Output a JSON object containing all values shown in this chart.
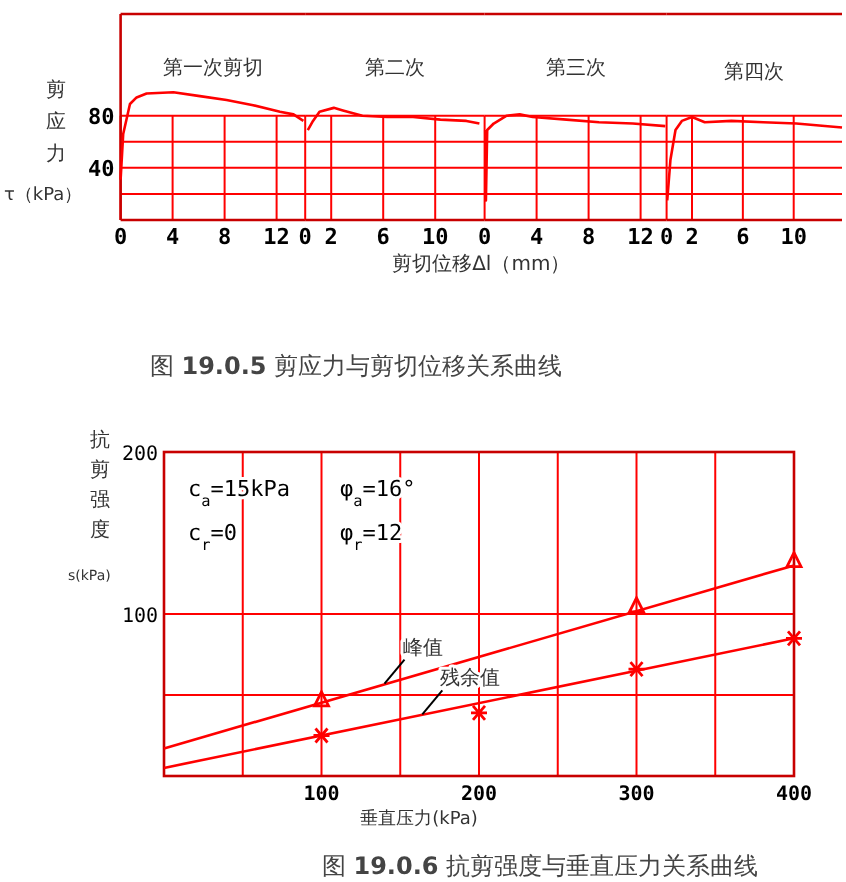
{
  "chart_data": [
    {
      "type": "line",
      "title": "第一次剪切",
      "xlabel": "剪切位移Δl（mm）",
      "ylabel": "剪应力 τ（kPa）",
      "color": "#ff0000",
      "grid": true,
      "x": [
        0,
        0.2,
        0.72,
        1.23,
        2.0,
        4.06,
        6.1,
        8.15,
        10.2,
        12.26,
        13.3,
        14.06
      ],
      "values": [
        31,
        66,
        89,
        94,
        97,
        98,
        95,
        92,
        88,
        83,
        81,
        76
      ],
      "xlim": [
        0,
        14.2
      ],
      "ylim": [
        0,
        158
      ],
      "xticks": [
        0,
        4,
        8,
        12
      ],
      "yticks": [
        {
          "value": 20,
          "label": null
        },
        40,
        {
          "value": 60,
          "label": null
        },
        80
      ],
      "annotations": [
        "图 **19.0.5**  剪应力与剪切位移关系曲线"
      ]
    },
    {
      "type": "line",
      "title": "第二次",
      "color": "#ff0000",
      "grid": true,
      "tick_labels": "x",
      "x": [
        0.2,
        0.6,
        1.1,
        2.2,
        2.9,
        4.4,
        6.3,
        8.3,
        10.4,
        12.4,
        13.4
      ],
      "values": [
        69,
        76,
        83,
        86,
        84,
        80,
        79,
        79,
        77,
        76,
        74
      ],
      "xlim": [
        0,
        13.8
      ],
      "ylim": [
        0,
        158
      ],
      "xticks": [
        0,
        2,
        6,
        10
      ],
      "yticks": [
        {
          "value": 20,
          "label": null
        },
        {
          "value": 40,
          "label": null
        },
        {
          "value": 60,
          "label": null
        },
        {
          "value": 80,
          "label": null
        }
      ]
    },
    {
      "type": "line",
      "title": "第三次",
      "color": "#ff0000",
      "grid": true,
      "tick_labels": "x",
      "x": [
        0.05,
        0.1,
        0.2,
        0.7,
        1.7,
        2.7,
        3.7,
        6.3,
        8.8,
        11.4,
        13.9
      ],
      "values": [
        69,
        15,
        69,
        74,
        80,
        81,
        79,
        77,
        75,
        74,
        72
      ],
      "xlim": [
        0,
        14
      ],
      "ylim": [
        0,
        158
      ],
      "xticks": [
        0,
        4,
        8,
        12
      ],
      "yticks": [
        {
          "value": 20,
          "label": null
        },
        {
          "value": 40,
          "label": null
        },
        {
          "value": 60,
          "label": null
        },
        {
          "value": 80,
          "label": null
        }
      ]
    },
    {
      "type": "line",
      "title": "第四次",
      "color": "#ff0000",
      "grid": true,
      "tick_labels": "x",
      "x": [
        0.05,
        0.3,
        0.7,
        1.2,
        2,
        3,
        5.1,
        7.6,
        10.2,
        13.8
      ],
      "values": [
        15,
        46,
        69,
        76,
        79,
        75,
        76,
        75,
        74,
        71
      ],
      "xlim": [
        0,
        13.8
      ],
      "ylim": [
        0,
        158
      ],
      "xticks": [
        0,
        2,
        6,
        10
      ],
      "yticks": [
        {
          "value": 20,
          "label": null
        },
        {
          "value": 40,
          "label": null
        },
        {
          "value": 60,
          "label": null
        },
        {
          "value": 80,
          "label": null
        }
      ]
    },
    {
      "type": "line",
      "title": "图 **19.0.6**  抗剪强度与垂直压力关系曲线",
      "xlabel": "垂直压力(kPa)",
      "ylabel": "抗剪强度 s(kPa)",
      "grid": true,
      "series": [
        {
          "color": "#ff0000",
          "x": [
            0,
            400
          ],
          "values": [
            17,
            130
          ]
        },
        {
          "color": "#ff0000",
          "x": [
            0,
            400
          ],
          "values": [
            5,
            85
          ]
        },
        {
          "type": "scatter",
          "marker": "triangle",
          "color": "#ff0000",
          "x": [
            100,
            300,
            400
          ],
          "values": [
            47,
            105,
            133
          ]
        },
        {
          "type": "scatter",
          "marker": "cross",
          "color": "#ff0000",
          "x": [
            100,
            200,
            300,
            400
          ],
          "values": [
            25,
            39,
            66,
            85
          ]
        }
      ],
      "xlim": [
        0,
        400
      ],
      "ylim": [
        0,
        200
      ],
      "xticks": [
        {
          "value": 50,
          "label": null
        },
        100,
        {
          "value": 150,
          "label": null
        },
        200,
        {
          "value": 250,
          "label": null
        },
        300,
        {
          "value": 350,
          "label": null
        },
        400
      ],
      "yticks": [
        {
          "value": 50,
          "label": null
        },
        100,
        200
      ],
      "annotations": [
        "c$_{a}$=15kPa",
        "φ$_{a}$=16°",
        "c$_{r}$=0",
        "φ$_{r}$=12",
        {
          "text": "峰值",
          "x": 140,
          "y": 57
        },
        {
          "text": "残余值",
          "x": 164,
          "y": 38
        }
      ]
    }
  ]
}
